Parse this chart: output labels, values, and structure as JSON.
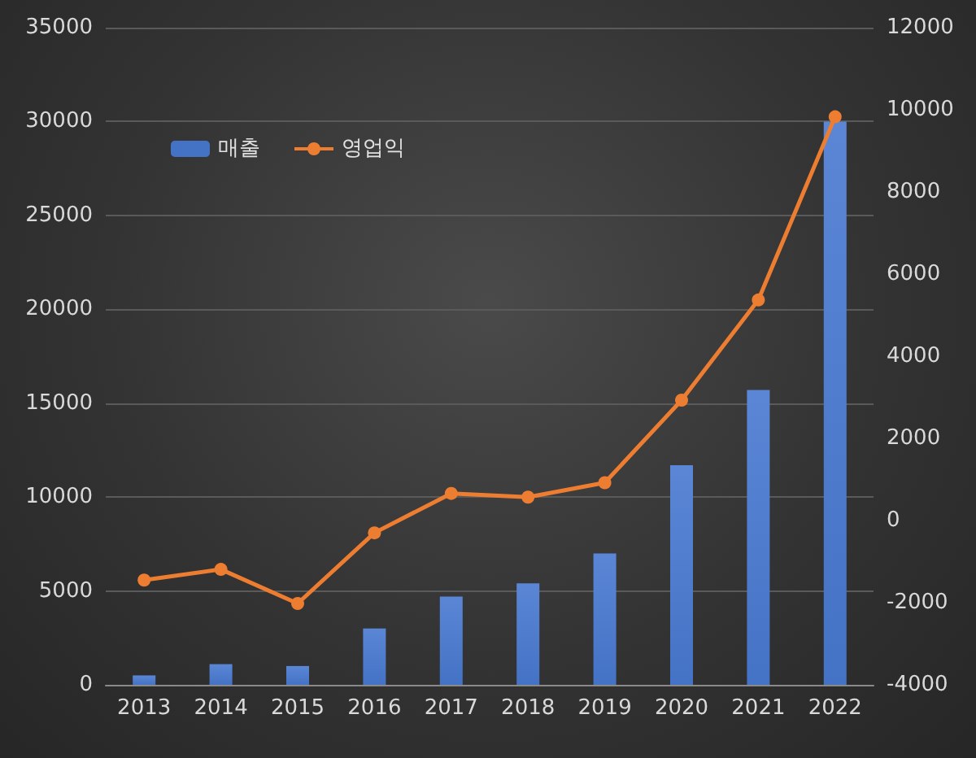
{
  "chart_data": {
    "type": "bar",
    "categories": [
      "2013",
      "2014",
      "2015",
      "2016",
      "2017",
      "2018",
      "2019",
      "2020",
      "2021",
      "2022"
    ],
    "series": [
      {
        "name": "매출",
        "color": "#4472c4",
        "values": [
          500,
          1100,
          1000,
          3000,
          4700,
          5400,
          7000,
          11700,
          15700,
          30000
        ]
      },
      {
        "name": "영업익",
        "type": "line",
        "axis": "y2",
        "color": "#ed7d31",
        "values": [
          -1450,
          -1190,
          -2020,
          -300,
          660,
          570,
          920,
          2930,
          5370,
          9830
        ]
      }
    ],
    "ylim": [
      0,
      35000
    ],
    "yticks": [
      0,
      5000,
      10000,
      15000,
      20000,
      25000,
      30000,
      35000
    ],
    "y2lim": [
      -4000,
      12000
    ],
    "y2ticks": [
      -4000,
      -2000,
      0,
      2000,
      4000,
      6000,
      8000,
      10000,
      12000
    ],
    "grid": "y",
    "legend": "top left",
    "marker": "circle",
    "line_style": "solid"
  }
}
